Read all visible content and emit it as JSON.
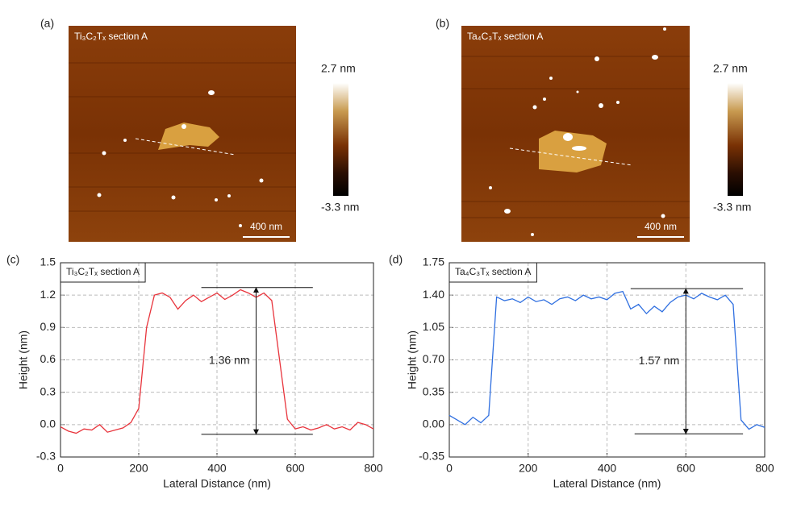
{
  "images": [
    {
      "panel": "(a)",
      "label": "Ti₃C₂Tₓ section A",
      "scale_bar": "400 nm",
      "colorbar_max": "2.7 nm",
      "colorbar_min": "-3.3 nm"
    },
    {
      "panel": "(b)",
      "label": "Ta₄C₃Tₓ section A",
      "scale_bar": "400 nm",
      "colorbar_max": "2.7 nm",
      "colorbar_min": "-3.3 nm"
    }
  ],
  "chart_data": [
    {
      "type": "line",
      "panel": "(c)",
      "label": "Ti₃C₂Tₓ section A",
      "x_label": "Lateral Distance (nm)",
      "y_label": "Height (nm)",
      "x": [
        0,
        20,
        40,
        60,
        80,
        100,
        120,
        140,
        160,
        180,
        200,
        220,
        240,
        260,
        280,
        300,
        320,
        340,
        360,
        380,
        400,
        420,
        440,
        460,
        480,
        500,
        520,
        540,
        560,
        580,
        600,
        620,
        640,
        660,
        680,
        700,
        720,
        740,
        760,
        780,
        800
      ],
      "series": [
        {
          "color": "#e8343c",
          "values": [
            -0.02,
            -0.06,
            -0.08,
            -0.04,
            -0.05,
            0.0,
            -0.07,
            -0.05,
            -0.03,
            0.02,
            0.15,
            0.9,
            1.2,
            1.22,
            1.18,
            1.07,
            1.15,
            1.2,
            1.14,
            1.18,
            1.22,
            1.16,
            1.2,
            1.25,
            1.22,
            1.18,
            1.22,
            1.15,
            0.6,
            0.05,
            -0.04,
            -0.02,
            -0.05,
            -0.03,
            0.0,
            -0.04,
            -0.02,
            -0.05,
            0.02,
            0.0,
            -0.04
          ]
        }
      ],
      "xlim": [
        0,
        800
      ],
      "xticks": [
        0,
        200,
        400,
        600,
        800
      ],
      "ylim": [
        -0.3,
        1.5
      ],
      "yticks": [
        -0.3,
        {
          "value": 0,
          "label": "0.0"
        },
        0.3,
        0.6,
        0.9,
        1.2,
        1.5
      ],
      "grid": true,
      "hlines": [
        {
          "y": 1.27,
          "x": [
            360,
            645
          ]
        },
        {
          "y": -0.09,
          "x": [
            360,
            645
          ]
        }
      ],
      "arrow_x": 500,
      "annotation": "1.36 nm"
    },
    {
      "type": "line",
      "panel": "(d)",
      "label": "Ta₄C₃Tₓ section A",
      "x_label": "Lateral Distance (nm)",
      "y_label": "Height (nm)",
      "x": [
        0,
        20,
        40,
        60,
        80,
        100,
        120,
        140,
        160,
        180,
        200,
        220,
        240,
        260,
        280,
        300,
        320,
        340,
        360,
        380,
        400,
        420,
        440,
        460,
        480,
        500,
        520,
        540,
        560,
        580,
        600,
        620,
        640,
        660,
        680,
        700,
        720,
        740,
        760,
        780,
        800
      ],
      "series": [
        {
          "color": "#2f6fe0",
          "values": [
            0.1,
            0.05,
            0.0,
            0.08,
            0.02,
            0.1,
            1.38,
            1.34,
            1.36,
            1.32,
            1.38,
            1.33,
            1.35,
            1.3,
            1.36,
            1.38,
            1.34,
            1.4,
            1.36,
            1.38,
            1.35,
            1.42,
            1.44,
            1.25,
            1.3,
            1.2,
            1.28,
            1.22,
            1.32,
            1.38,
            1.4,
            1.36,
            1.42,
            1.38,
            1.35,
            1.4,
            1.3,
            0.05,
            -0.05,
            0.0,
            -0.03
          ]
        }
      ],
      "xlim": [
        0,
        800
      ],
      "xticks": [
        0,
        200,
        400,
        600,
        800
      ],
      "ylim": [
        -0.35,
        1.75
      ],
      "yticks": [
        -0.35,
        {
          "value": 0,
          "label": "0.00"
        },
        0.35,
        {
          "value": 0.7,
          "label": "0.70"
        },
        1.05,
        {
          "value": 1.4,
          "label": "1.40"
        },
        1.75
      ],
      "grid": true,
      "hlines": [
        {
          "y": 1.47,
          "x": [
            460,
            745
          ]
        },
        {
          "y": -0.1,
          "x": [
            470,
            745
          ]
        }
      ],
      "arrow_x": 600,
      "annotation": "1.57 nm"
    }
  ]
}
